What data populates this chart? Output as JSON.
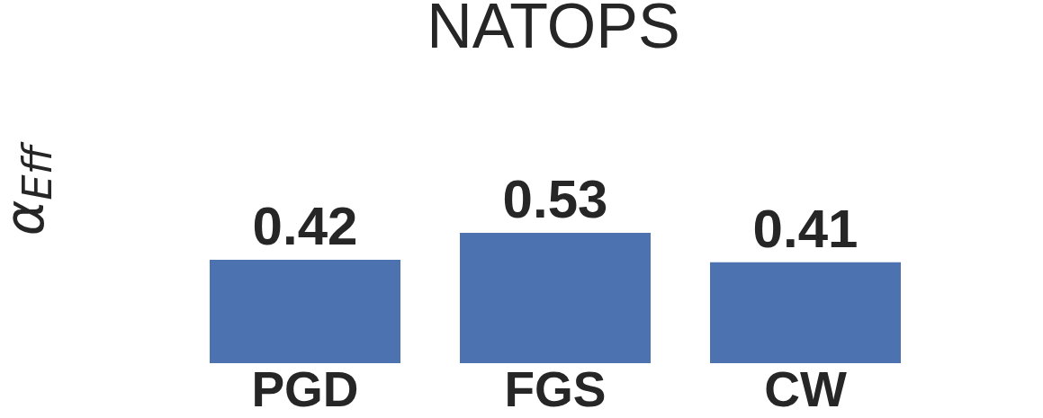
{
  "chart_data": {
    "type": "bar",
    "title": "NATOPS",
    "ylabel": "α$_{Eff}$",
    "categories": [
      "PGD",
      "FGS",
      "CW"
    ],
    "values": [
      0.42,
      0.53,
      0.41
    ],
    "color": "#4c72b0",
    "tick_labels": "x",
    "data_labels": true
  }
}
